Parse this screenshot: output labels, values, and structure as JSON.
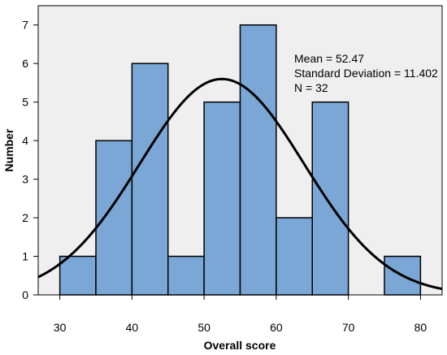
{
  "chart_data": {
    "type": "bar",
    "subtype": "histogram",
    "xlabel": "Overall score",
    "ylabel": "Number",
    "xlim": [
      27,
      83
    ],
    "ylim": [
      0,
      7.5
    ],
    "bins": [
      {
        "start": 30,
        "end": 35,
        "count": 1
      },
      {
        "start": 35,
        "end": 40,
        "count": 4
      },
      {
        "start": 40,
        "end": 45,
        "count": 6
      },
      {
        "start": 45,
        "end": 50,
        "count": 1
      },
      {
        "start": 50,
        "end": 55,
        "count": 5
      },
      {
        "start": 55,
        "end": 60,
        "count": 7
      },
      {
        "start": 60,
        "end": 65,
        "count": 2
      },
      {
        "start": 65,
        "end": 70,
        "count": 5
      },
      {
        "start": 70,
        "end": 75,
        "count": 0
      },
      {
        "start": 75,
        "end": 80,
        "count": 1
      }
    ],
    "x_ticks": [
      30,
      40,
      50,
      60,
      70,
      80
    ],
    "y_ticks": [
      0,
      1,
      2,
      3,
      4,
      5,
      6,
      7
    ],
    "normal_curve": {
      "mean": 52.47,
      "sd": 11.402,
      "n": 32,
      "bin_width": 5
    },
    "stats_lines": [
      "Mean = 52.47",
      "Standard Deviation = 11.402",
      "N = 32"
    ],
    "colors": {
      "bar_fill": "#7ba7d6",
      "bar_stroke": "#000000",
      "plot_bg": "#efefef",
      "curve": "#000000"
    },
    "grid": false
  }
}
